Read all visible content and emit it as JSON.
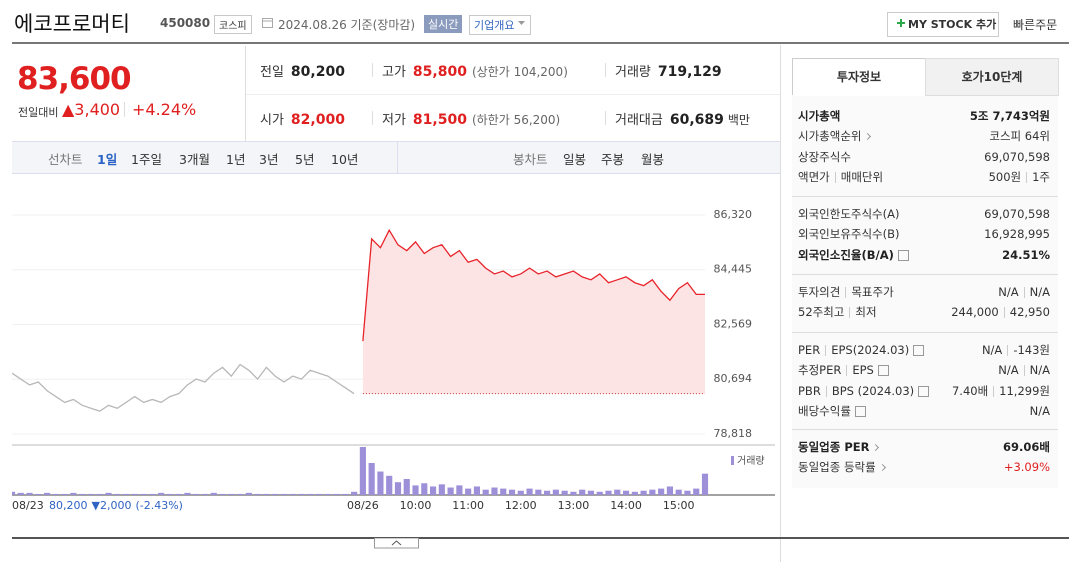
{
  "header": {
    "name": "에코프로머티",
    "code": "450080",
    "market": "코스피",
    "date": "2024.08.26 기준(장마감)",
    "realtime": "실시간",
    "overview": "기업개요",
    "mystock": "MY STOCK 추가",
    "quick_order": "빠른주문"
  },
  "price": {
    "current": "83,600",
    "change_label": "전일대비",
    "change": "▲3,400",
    "rate": "+4.24%"
  },
  "stats": [
    [
      {
        "label": "전일",
        "value": "80,200",
        "color": "#222222"
      },
      {
        "label": "고가",
        "value": "85,800",
        "sub": "(상한가 104,200)",
        "color": "#e02020"
      },
      {
        "label": "거래량",
        "value": "719,129",
        "color": "#222222"
      }
    ],
    [
      {
        "label": "시가",
        "value": "82,000",
        "color": "#e02020"
      },
      {
        "label": "저가",
        "value": "81,500",
        "sub": "(하한가 56,200)",
        "color": "#e02020"
      },
      {
        "label": "거래대금",
        "value": "60,689",
        "unit": "백만",
        "color": "#222222"
      }
    ]
  ],
  "chart_tabs": {
    "line_label": "선차트",
    "line": [
      "1일",
      "1주일",
      "3개월",
      "1년",
      "3년",
      "5년",
      "10년"
    ],
    "active": 0,
    "candle_label": "봉차트",
    "candle": [
      "일봉",
      "주봉",
      "월봉"
    ]
  },
  "panel": {
    "tabs": [
      "투자정보",
      "호가10단계"
    ],
    "active": 0,
    "sections": [
      [
        {
          "label": [
            "시가총액"
          ],
          "value": [
            "5조 7,743억원"
          ],
          "bold": true
        },
        {
          "label": [
            "시가총액순위"
          ],
          "value": [
            "코스피 64위"
          ],
          "arrow": true
        },
        {
          "label": [
            "상장주식수"
          ],
          "value": [
            "69,070,598"
          ]
        },
        {
          "label": [
            "액면가",
            "매매단위"
          ],
          "value": [
            "500원",
            "1주"
          ]
        }
      ],
      [
        {
          "label": [
            "외국인한도주식수(A)"
          ],
          "value": [
            "69,070,598"
          ]
        },
        {
          "label": [
            "외국인보유주식수(B)"
          ],
          "value": [
            "16,928,995"
          ]
        },
        {
          "label": [
            "외국인소진율(B/A)"
          ],
          "value": [
            "24.51%"
          ],
          "bold": true,
          "help": true
        }
      ],
      [
        {
          "label": [
            "투자의견",
            "목표주가"
          ],
          "value": [
            "N/A",
            "N/A"
          ]
        },
        {
          "label": [
            "52주최고",
            "최저"
          ],
          "value": [
            "244,000",
            "42,950"
          ]
        }
      ],
      [
        {
          "label": [
            "PER",
            "EPS(2024.03)"
          ],
          "value": [
            "N/A",
            "-143원"
          ],
          "help": true
        },
        {
          "label": [
            "추정PER",
            "EPS"
          ],
          "value": [
            "N/A",
            "N/A"
          ],
          "help": true
        },
        {
          "label": [
            "PBR",
            "BPS (2024.03)"
          ],
          "value": [
            "7.40배",
            "11,299원"
          ],
          "help": true
        },
        {
          "label": [
            "배당수익률"
          ],
          "value": [
            "N/A"
          ],
          "help": true
        }
      ],
      [
        {
          "label": [
            "동일업종 PER"
          ],
          "value": [
            "69.06배"
          ],
          "bold": true,
          "arrow": true
        },
        {
          "label": [
            "동일업종 등락률"
          ],
          "value": [
            "+3.09%"
          ],
          "arrow": true,
          "color": "#e02020"
        }
      ]
    ]
  },
  "chart_data": {
    "type": "line",
    "categories": [
      "08/23",
      null,
      null,
      null,
      null,
      null,
      null,
      null,
      null,
      null,
      null,
      null,
      null,
      null,
      null,
      null,
      null,
      null,
      null,
      null,
      null,
      null,
      null,
      null,
      null,
      null,
      null,
      null,
      null,
      null,
      null,
      null,
      null,
      null,
      null,
      null,
      null,
      null,
      null,
      null,
      "08/26",
      null,
      null,
      null,
      null,
      null,
      "10:00",
      null,
      null,
      null,
      null,
      null,
      "11:00",
      null,
      null,
      null,
      null,
      null,
      "12:00",
      null,
      null,
      null,
      null,
      null,
      "13:00",
      null,
      null,
      null,
      null,
      null,
      "14:00",
      null,
      null,
      null,
      null,
      null,
      "15:00",
      null,
      null,
      null
    ],
    "series": [
      {
        "color": "#b8b8b8",
        "values": [
          80900,
          80700,
          80500,
          80600,
          80300,
          80100,
          79900,
          80000,
          79800,
          79700,
          79600,
          79800,
          79700,
          79900,
          80100,
          79900,
          80000,
          79900,
          80100,
          80200,
          80500,
          80700,
          80600,
          80900,
          81100,
          80800,
          81200,
          81000,
          80700,
          81100,
          80800,
          80600,
          80800,
          80700,
          81000,
          80900,
          80800,
          80600,
          80400,
          80200,
          null,
          null,
          null,
          null,
          null,
          null,
          null,
          null,
          null,
          null,
          null,
          null,
          null,
          null,
          null,
          null,
          null,
          null,
          null,
          null,
          null,
          null,
          null,
          null,
          null,
          null,
          null,
          null,
          null,
          null,
          null,
          null,
          null,
          null,
          null,
          null,
          null,
          null,
          null,
          null
        ]
      },
      {
        "color": "#e8232a",
        "fill": "#fde4e4",
        "values": [
          null,
          null,
          null,
          null,
          null,
          null,
          null,
          null,
          null,
          null,
          null,
          null,
          null,
          null,
          null,
          null,
          null,
          null,
          null,
          null,
          null,
          null,
          null,
          null,
          null,
          null,
          null,
          null,
          null,
          null,
          null,
          null,
          null,
          null,
          null,
          null,
          null,
          null,
          null,
          null,
          82000,
          85500,
          85200,
          85800,
          85300,
          85100,
          85400,
          85000,
          85200,
          85300,
          84900,
          85100,
          84700,
          84800,
          84500,
          84300,
          84400,
          84200,
          84300,
          84500,
          84300,
          84400,
          84200,
          84300,
          84400,
          84200,
          84100,
          84300,
          84000,
          84100,
          84200,
          84000,
          83900,
          84100,
          83700,
          83400,
          83800,
          84000,
          83600,
          83600
        ]
      }
    ],
    "reference_line": 80200,
    "volume": {
      "name": "거래량",
      "color": "#9d8fd8",
      "values": [
        3000,
        2000,
        2000,
        1000,
        2000,
        1000,
        1000,
        2000,
        1000,
        1000,
        1000,
        2000,
        1000,
        1000,
        1000,
        1000,
        1000,
        2000,
        1000,
        1000,
        2000,
        1000,
        1000,
        2000,
        1000,
        1000,
        1000,
        2000,
        1000,
        1000,
        1000,
        1000,
        1000,
        1000,
        1000,
        1000,
        1000,
        1000,
        1000,
        3000,
        45000,
        30000,
        22000,
        18000,
        12000,
        15000,
        9000,
        11000,
        8000,
        10000,
        7000,
        9000,
        6000,
        8000,
        5000,
        7000,
        6000,
        5000,
        4000,
        6000,
        5000,
        4000,
        5000,
        4000,
        3000,
        5000,
        4000,
        3000,
        4000,
        5000,
        4000,
        3000,
        4000,
        5000,
        6000,
        8000,
        5000,
        4000,
        6000,
        20000
      ]
    },
    "ylim": [
      78818,
      86320
    ],
    "yticks": [
      {
        "value": 86320,
        "label": "86,320"
      },
      {
        "value": 84445,
        "label": "84,445"
      },
      {
        "value": 82569,
        "label": "82,569"
      },
      {
        "value": 80694,
        "label": "80,694"
      },
      {
        "value": 78818,
        "label": "78,818"
      }
    ],
    "grid": true,
    "footer": {
      "price": "80,200",
      "change": "▼2,000",
      "rate": "(-2.43%)"
    }
  }
}
